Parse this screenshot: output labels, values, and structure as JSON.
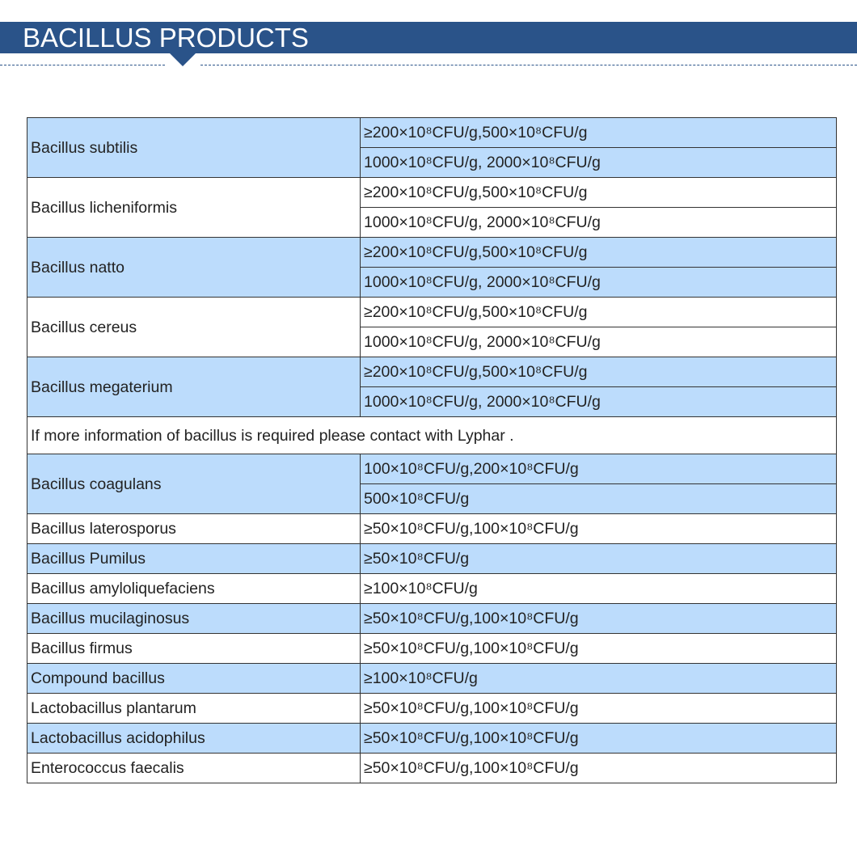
{
  "header": {
    "title": "BACILLUS PRODUCTS",
    "color": "#2a5389"
  },
  "table": {
    "row_color_blue": "#bcdcfc",
    "groups": [
      {
        "name": "Bacillus subtilis",
        "blue": true,
        "specs": [
          "≥200×10⁸CFU/g,500×10⁸CFU/g",
          "1000×10⁸CFU/g, 2000×10⁸CFU/g"
        ]
      },
      {
        "name": "Bacillus licheniformis",
        "blue": false,
        "specs": [
          "≥200×10⁸CFU/g,500×10⁸CFU/g",
          "1000×10⁸CFU/g, 2000×10⁸CFU/g"
        ]
      },
      {
        "name": "Bacillus natto",
        "blue": true,
        "specs": [
          "≥200×10⁸CFU/g,500×10⁸CFU/g",
          "1000×10⁸CFU/g, 2000×10⁸CFU/g"
        ]
      },
      {
        "name": "Bacillus cereus",
        "blue": false,
        "specs": [
          "≥200×10⁸CFU/g,500×10⁸CFU/g",
          "1000×10⁸CFU/g, 2000×10⁸CFU/g"
        ]
      },
      {
        "name": "Bacillus megaterium",
        "blue": true,
        "specs": [
          "≥200×10⁸CFU/g,500×10⁸CFU/g",
          "1000×10⁸CFU/g, 2000×10⁸CFU/g"
        ]
      },
      {
        "note": "If more information of bacillus is required please contact with Lyphar ."
      },
      {
        "name": "Bacillus coagulans",
        "blue": true,
        "specs": [
          "100×10⁸CFU/g,200×10⁸CFU/g",
          "500×10⁸CFU/g"
        ]
      },
      {
        "name": "Bacillus laterosporus",
        "blue": false,
        "specs": [
          "≥50×10⁸CFU/g,100×10⁸CFU/g"
        ]
      },
      {
        "name": "Bacillus Pumilus",
        "blue": true,
        "specs": [
          "≥50×10⁸CFU/g"
        ]
      },
      {
        "name": "Bacillus amyloliquefaciens",
        "blue": false,
        "specs": [
          "≥100×10⁸CFU/g"
        ]
      },
      {
        "name": "Bacillus mucilaginosus",
        "blue": true,
        "specs": [
          "≥50×10⁸CFU/g,100×10⁸CFU/g"
        ]
      },
      {
        "name": "Bacillus firmus",
        "blue": false,
        "specs": [
          "≥50×10⁸CFU/g,100×10⁸CFU/g"
        ]
      },
      {
        "name": "Compound bacillus",
        "blue": true,
        "specs": [
          "≥100×10⁸CFU/g"
        ]
      },
      {
        "name": "Lactobacillus plantarum",
        "blue": false,
        "specs": [
          "≥50×10⁸CFU/g,100×10⁸CFU/g"
        ]
      },
      {
        "name": "Lactobacillus acidophilus",
        "blue": true,
        "specs": [
          "≥50×10⁸CFU/g,100×10⁸CFU/g"
        ]
      },
      {
        "name": "Enterococcus faecalis",
        "blue": false,
        "specs": [
          "≥50×10⁸CFU/g,100×10⁸CFU/g"
        ]
      }
    ]
  }
}
